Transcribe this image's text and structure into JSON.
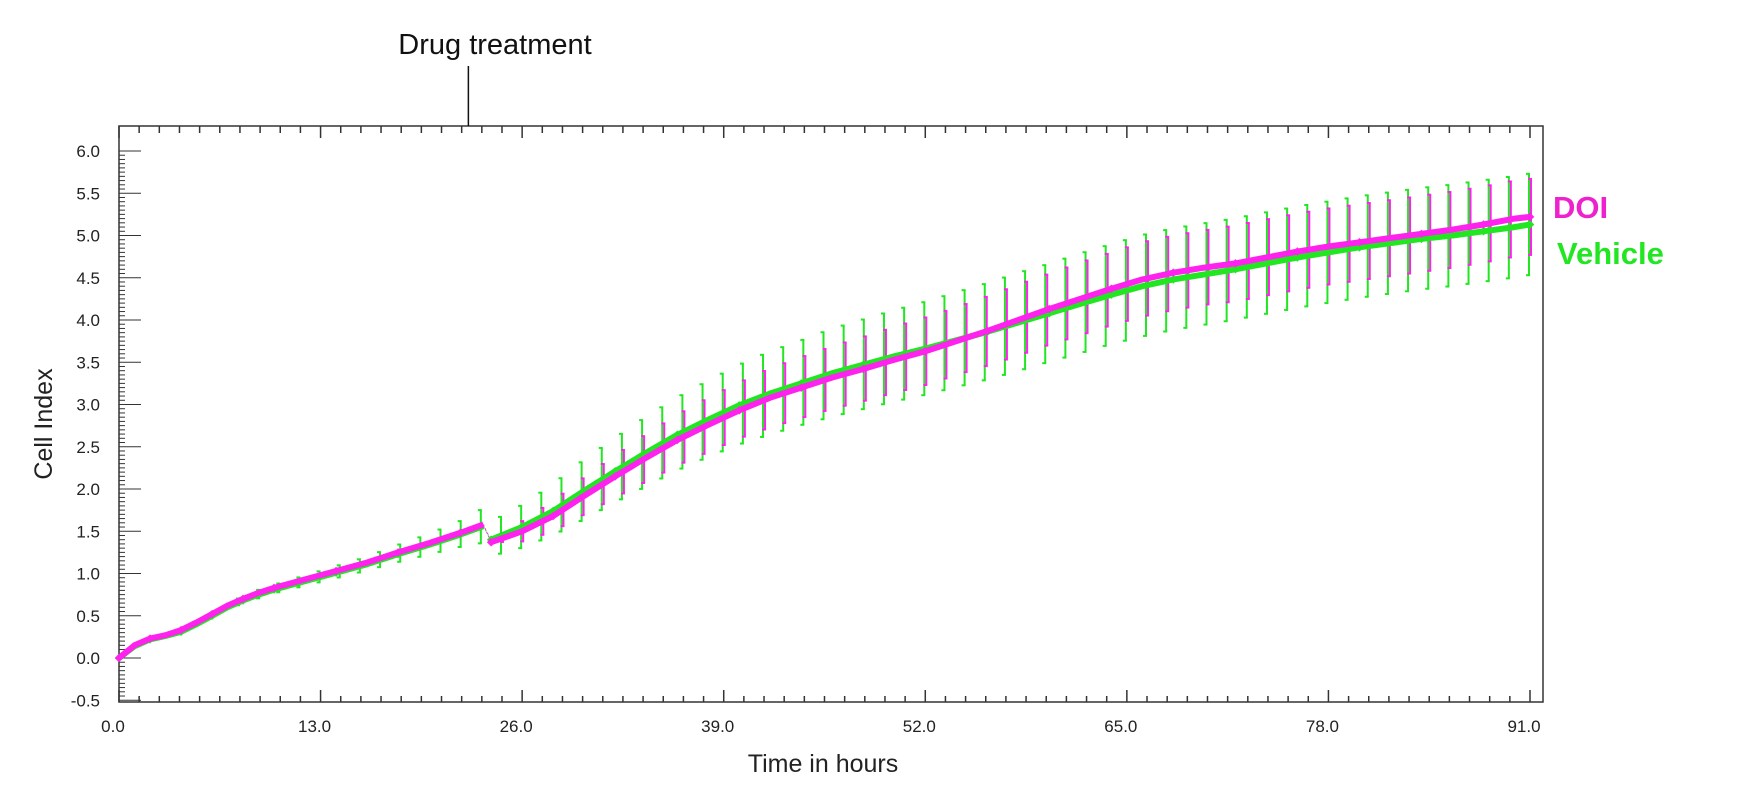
{
  "chart_data": {
    "type": "line",
    "title": "",
    "xlabel": "Time in hours",
    "ylabel": "Cell Index",
    "xlim": [
      0,
      91
    ],
    "ylim": [
      -0.5,
      6.0
    ],
    "x_ticks": [
      "0.0",
      "13.0",
      "26.0",
      "39.0",
      "52.0",
      "65.0",
      "78.0",
      "91.0"
    ],
    "y_ticks": [
      "-0.5",
      "0.0",
      "0.5",
      "1.0",
      "1.5",
      "2.0",
      "2.5",
      "3.0",
      "3.5",
      "4.0",
      "4.5",
      "5.0",
      "5.5",
      "6.0"
    ],
    "grid": false,
    "legend_placement": "right",
    "annotation": {
      "text": "Drug treatment",
      "x": 23.5
    },
    "x": [
      0,
      1,
      2,
      3,
      4,
      5,
      6,
      7,
      8,
      9,
      10,
      12,
      14,
      16,
      18,
      20,
      22,
      23.5,
      24,
      26,
      28,
      30,
      32,
      34,
      36,
      38,
      40,
      42,
      44,
      46,
      48,
      50,
      52,
      54,
      56,
      58,
      60,
      62,
      64,
      66,
      68,
      70,
      72,
      74,
      76,
      78,
      80,
      82,
      84,
      86,
      88,
      90,
      91
    ],
    "series": [
      {
        "name": "Vehicle",
        "color": "#22e622",
        "values": [
          0,
          0.14,
          0.22,
          0.26,
          0.31,
          0.4,
          0.5,
          0.6,
          0.68,
          0.75,
          0.81,
          0.91,
          1.01,
          1.11,
          1.23,
          1.34,
          1.46,
          1.56,
          1.4,
          1.55,
          1.74,
          1.98,
          2.21,
          2.43,
          2.64,
          2.82,
          2.99,
          3.13,
          3.25,
          3.37,
          3.47,
          3.57,
          3.66,
          3.76,
          3.86,
          3.97,
          4.08,
          4.19,
          4.3,
          4.4,
          4.48,
          4.54,
          4.6,
          4.67,
          4.74,
          4.8,
          4.86,
          4.91,
          4.96,
          5.0,
          5.05,
          5.1,
          5.13
        ],
        "sd": [
          0,
          0.02,
          0.02,
          0.02,
          0.03,
          0.03,
          0.03,
          0.04,
          0.04,
          0.05,
          0.05,
          0.06,
          0.07,
          0.08,
          0.1,
          0.12,
          0.15,
          0.2,
          0.2,
          0.25,
          0.3,
          0.35,
          0.38,
          0.41,
          0.43,
          0.45,
          0.47,
          0.49,
          0.5,
          0.52,
          0.53,
          0.54,
          0.55,
          0.56,
          0.57,
          0.58,
          0.58,
          0.59,
          0.59,
          0.6,
          0.6,
          0.6,
          0.6,
          0.6,
          0.6,
          0.6,
          0.6,
          0.6,
          0.6,
          0.6,
          0.6,
          0.6,
          0.6
        ]
      },
      {
        "name": "DOI",
        "color": "#ff22ee",
        "values": [
          0,
          0.15,
          0.23,
          0.27,
          0.33,
          0.42,
          0.52,
          0.62,
          0.7,
          0.77,
          0.83,
          0.93,
          1.03,
          1.13,
          1.25,
          1.36,
          1.48,
          1.58,
          1.37,
          1.5,
          1.68,
          1.92,
          2.15,
          2.37,
          2.58,
          2.76,
          2.93,
          3.08,
          3.2,
          3.32,
          3.42,
          3.53,
          3.63,
          3.75,
          3.87,
          4.0,
          4.13,
          4.25,
          4.37,
          4.48,
          4.56,
          4.62,
          4.67,
          4.74,
          4.81,
          4.87,
          4.92,
          4.97,
          5.02,
          5.07,
          5.13,
          5.2,
          5.22
        ],
        "sd": [
          0,
          0,
          0,
          0,
          0,
          0,
          0,
          0,
          0,
          0,
          0,
          0,
          0,
          0,
          0,
          0,
          0,
          0,
          0,
          0.12,
          0.18,
          0.22,
          0.25,
          0.28,
          0.3,
          0.32,
          0.33,
          0.35,
          0.36,
          0.37,
          0.38,
          0.39,
          0.4,
          0.4,
          0.41,
          0.42,
          0.42,
          0.43,
          0.43,
          0.44,
          0.44,
          0.44,
          0.45,
          0.45,
          0.45,
          0.45,
          0.45,
          0.45,
          0.45,
          0.45,
          0.45,
          0.45,
          0.45
        ]
      }
    ]
  }
}
